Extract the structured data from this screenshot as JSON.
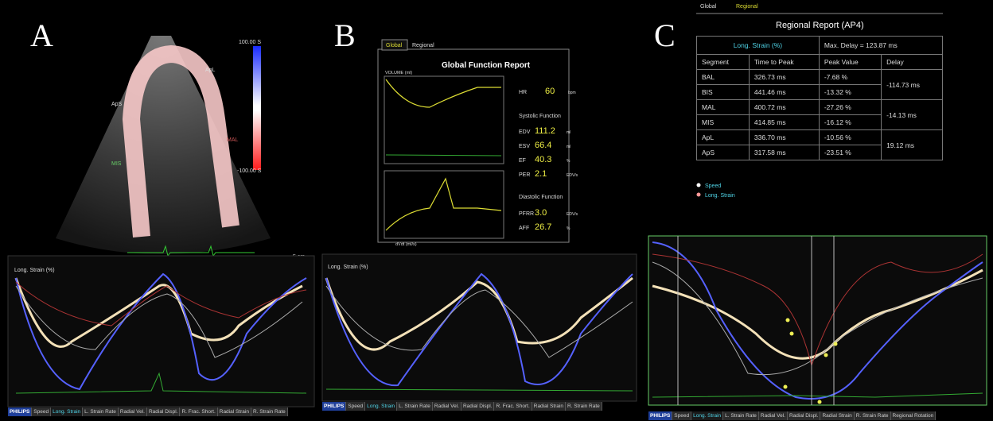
{
  "panel_a": {
    "label": "A",
    "segments": [
      "ApS",
      "ApL",
      "MIS",
      "MAL"
    ],
    "scale_top": "100.00 S",
    "scale_bottom": "-100.00 S",
    "depth": "5 cm",
    "graph_title": "Long. Strain (%)",
    "tabs": [
      "PHILIPS",
      "Speed",
      "Long. Strain",
      "L. Strain Rate",
      "Radial Vel.",
      "Radial Displ.",
      "R. Frac. Short.",
      "Radial Strain",
      "R. Strain Rate"
    ]
  },
  "panel_b": {
    "label": "B",
    "report_tabs": [
      "Global",
      "Regional"
    ],
    "title": "Global Function Report",
    "volume_label": "VOLUME (ml)",
    "dvdt_label": "dVdt (ml/s)",
    "hr": {
      "name": "HR",
      "value": "60",
      "unit": "bpm"
    },
    "systolic_heading": "Systolic Function",
    "systolic": [
      {
        "name": "EDV",
        "value": "111.2",
        "unit": "ml"
      },
      {
        "name": "ESV",
        "value": "66.4",
        "unit": "ml"
      },
      {
        "name": "EF",
        "value": "40.3",
        "unit": "%"
      },
      {
        "name": "PER",
        "value": "2.1",
        "unit": "EDV/s"
      }
    ],
    "diastolic_heading": "Diastolic Function",
    "diastolic": [
      {
        "name": "PFRR",
        "value": "3.0",
        "unit": "EDV/s"
      },
      {
        "name": "AFF",
        "value": "26.7",
        "unit": "%"
      }
    ],
    "graph_title": "Long. Strain (%)",
    "tabs": [
      "PHILIPS",
      "Speed",
      "Long. Strain",
      "L. Strain Rate",
      "Radial Vel.",
      "Radial Displ.",
      "R. Frac. Short.",
      "Radial Strain",
      "R. Strain Rate"
    ]
  },
  "panel_c": {
    "label": "C",
    "report_tabs": [
      "Global",
      "Regional"
    ],
    "title": "Regional Report (AP4)",
    "measure": "Long. Strain (%)",
    "max_delay": "Max. Delay =   123.87 ms",
    "columns": [
      "Segment",
      "Time to Peak",
      "Peak Value",
      "Delay"
    ],
    "rows": [
      [
        "BAL",
        "326.73 ms",
        "-7.68 %"
      ],
      [
        "BIS",
        "441.46 ms",
        "-13.32 %"
      ],
      [
        "MAL",
        "400.72 ms",
        "-27.26 %"
      ],
      [
        "MIS",
        "414.85 ms",
        "-16.12 %"
      ],
      [
        "ApL",
        "336.70 ms",
        "-10.56 %"
      ],
      [
        "ApS",
        "317.58 ms",
        "-23.51 %"
      ]
    ],
    "delays": [
      "-114.73 ms",
      "-14.13 ms",
      "19.12 ms"
    ],
    "legend": [
      "Speed",
      "Long. Strain"
    ],
    "tabs": [
      "PHILIPS",
      "Speed",
      "Long. Strain",
      "L. Strain Rate",
      "Radial Vel.",
      "Radial Displ.",
      "Radial Strain",
      "R. Strain Rate",
      "Regional Rotation"
    ]
  }
}
